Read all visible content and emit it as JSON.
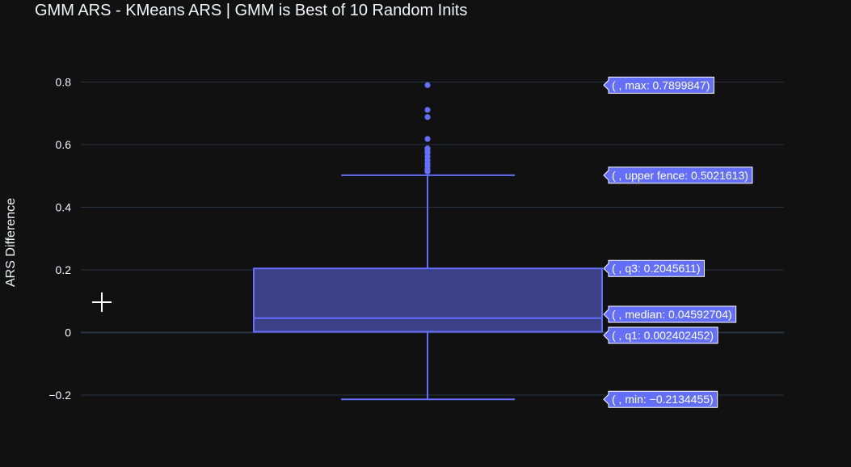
{
  "chart_data": {
    "type": "box",
    "title": "GMM ARS - KMeans ARS | GMM is Best of 10 Random Inits",
    "ylabel": "ARS Difference",
    "xlabel": "",
    "ylim": [
      -0.27,
      0.92
    ],
    "yticks": [
      -0.2,
      0,
      0.2,
      0.4,
      0.6,
      0.8
    ],
    "ytick_labels": [
      "−0.2",
      "0",
      "0.2",
      "0.4",
      "0.6",
      "0.8"
    ],
    "grid": true,
    "color": "#636efa",
    "fill_color": "#3b4087",
    "stats": {
      "min": -0.2134455,
      "q1": 0.002402452,
      "median": 0.04592704,
      "q3": 0.2045611,
      "upper_fence": 0.5021613,
      "max": 0.7899847
    },
    "outliers": [
      0.7899847,
      0.711,
      0.688,
      0.618,
      0.588,
      0.582,
      0.574,
      0.562,
      0.551,
      0.541,
      0.532,
      0.521,
      0.514
    ],
    "hover_labels": [
      {
        "key": "max",
        "text": "( , max: 0.7899847)"
      },
      {
        "key": "upper_fence",
        "text": "( , upper fence: 0.5021613)"
      },
      {
        "key": "q3",
        "text": "( , q3: 0.2045611)"
      },
      {
        "key": "median",
        "text": "( , median: 0.04592704)"
      },
      {
        "key": "q1",
        "text": "( , q1: 0.002402452)"
      },
      {
        "key": "min",
        "text": "( , min: −0.2134455)"
      }
    ]
  }
}
